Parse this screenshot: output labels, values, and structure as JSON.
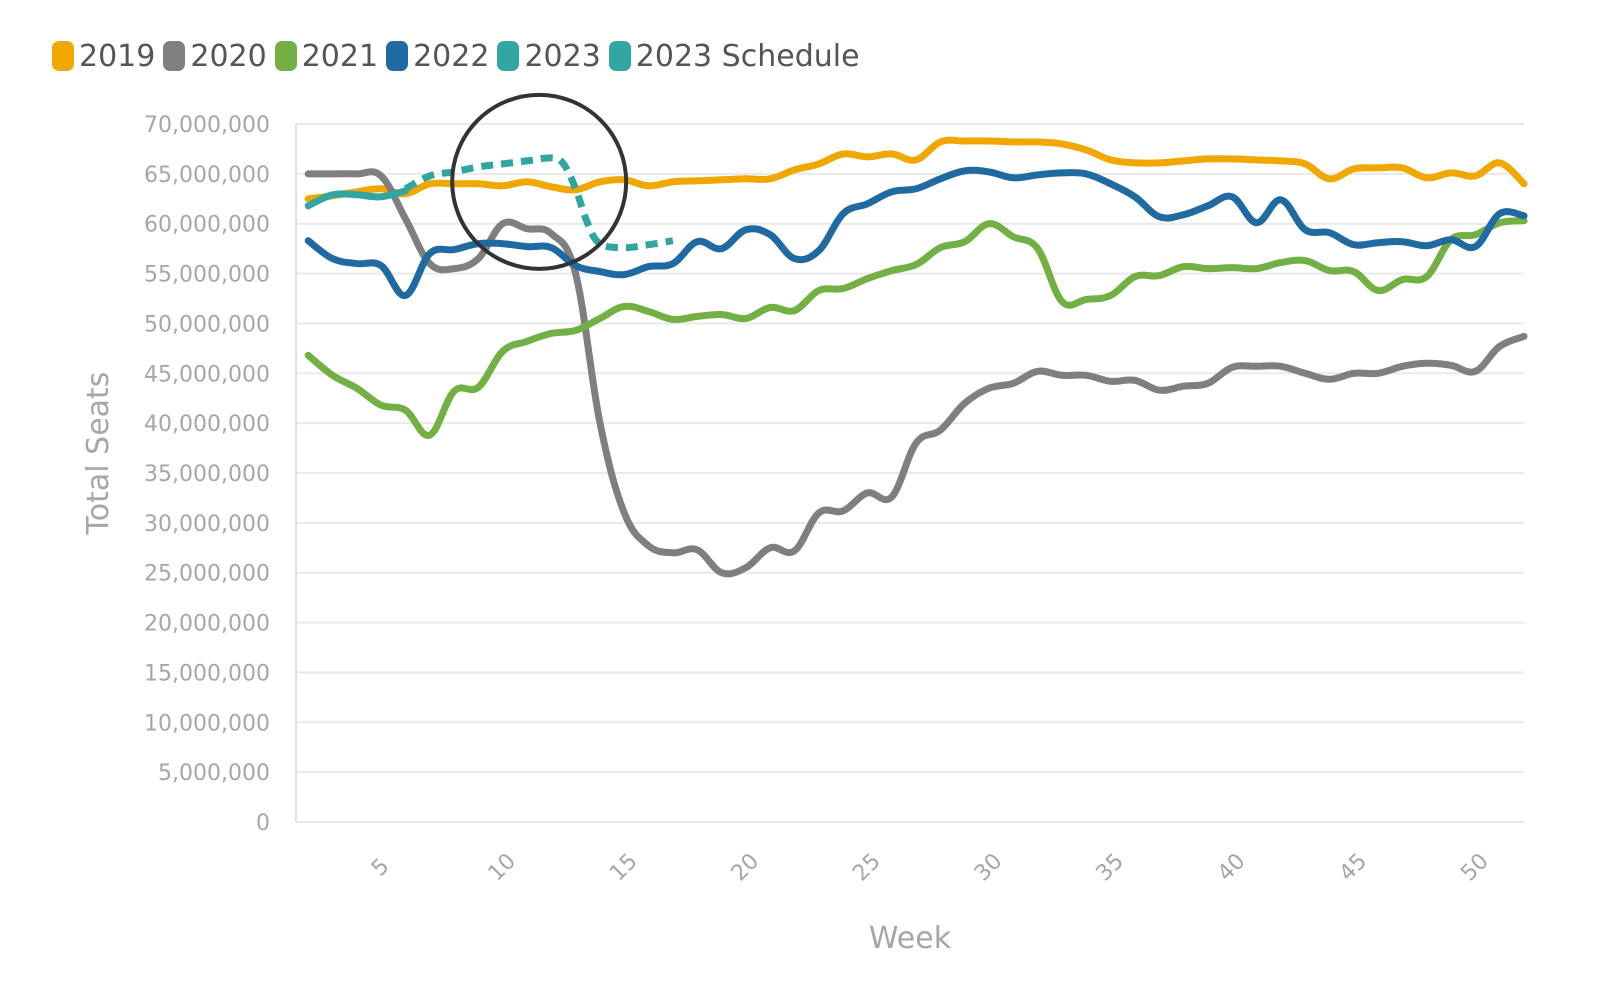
{
  "chart_data": {
    "type": "line",
    "title": "",
    "xlabel": "Week",
    "ylabel": "Total Seats",
    "xlim": [
      1.5,
      52
    ],
    "ylim": [
      0,
      70000000
    ],
    "grid": true,
    "legend_position": "top-left",
    "x_ticks": [
      5,
      10,
      15,
      20,
      25,
      30,
      35,
      40,
      45,
      50
    ],
    "x_tick_labels": [
      "5",
      "10",
      "15",
      "20",
      "25",
      "30",
      "35",
      "40",
      "45",
      "50"
    ],
    "y_ticks": [
      0,
      5000000,
      10000000,
      15000000,
      20000000,
      25000000,
      30000000,
      35000000,
      40000000,
      45000000,
      50000000,
      55000000,
      60000000,
      65000000,
      70000000
    ],
    "y_tick_labels": [
      "0",
      "5,000,000",
      "10,000,000",
      "15,000,000",
      "20,000,000",
      "25,000,000",
      "30,000,000",
      "35,000,000",
      "40,000,000",
      "45,000,000",
      "50,000,000",
      "55,000,000",
      "60,000,000",
      "65,000,000",
      "70,000,000"
    ],
    "series": [
      {
        "name": "2019",
        "color": "#f0a800",
        "dashed": false,
        "x": [
          2,
          3,
          4,
          5,
          6,
          7,
          8,
          9,
          10,
          11,
          12,
          13,
          14,
          15,
          16,
          17,
          18,
          19,
          20,
          21,
          22,
          23,
          24,
          25,
          26,
          27,
          28,
          29,
          30,
          31,
          32,
          33,
          34,
          35,
          36,
          37,
          38,
          39,
          40,
          41,
          42,
          43,
          44,
          45,
          46,
          47,
          48,
          49,
          50,
          51,
          52
        ],
        "y": [
          62500000,
          62800000,
          63200000,
          63500000,
          63000000,
          64000000,
          64000000,
          64000000,
          63800000,
          64200000,
          63700000,
          63400000,
          64200000,
          64400000,
          63800000,
          64200000,
          64300000,
          64400000,
          64500000,
          64500000,
          65400000,
          66000000,
          67000000,
          66700000,
          67000000,
          66400000,
          68200000,
          68300000,
          68300000,
          68200000,
          68200000,
          68000000,
          67400000,
          66400000,
          66100000,
          66100000,
          66300000,
          66500000,
          66500000,
          66400000,
          66300000,
          66000000,
          64500000,
          65500000,
          65600000,
          65600000,
          64600000,
          65100000,
          64800000,
          66100000,
          64000000
        ]
      },
      {
        "name": "2020",
        "color": "#7f7f7f",
        "dashed": false,
        "x": [
          2,
          3,
          4,
          5,
          6,
          7,
          8,
          9,
          10,
          11,
          12,
          13,
          14,
          15,
          16,
          17,
          18,
          19,
          20,
          21,
          22,
          23,
          24,
          25,
          26,
          27,
          28,
          29,
          30,
          31,
          32,
          33,
          34,
          35,
          36,
          37,
          38,
          39,
          40,
          41,
          42,
          43,
          44,
          45,
          46,
          47,
          48,
          49,
          50,
          51,
          52
        ],
        "y": [
          65000000,
          65000000,
          65000000,
          64800000,
          60500000,
          56000000,
          55500000,
          56500000,
          60000000,
          59500000,
          59000000,
          55000000,
          40000000,
          31000000,
          27700000,
          27000000,
          27300000,
          25000000,
          25500000,
          27500000,
          27200000,
          31000000,
          31200000,
          33000000,
          32600000,
          38000000,
          39300000,
          42000000,
          43500000,
          44000000,
          45200000,
          44800000,
          44800000,
          44200000,
          44300000,
          43300000,
          43700000,
          44000000,
          45600000,
          45700000,
          45700000,
          45000000,
          44400000,
          45000000,
          45000000,
          45700000,
          46000000,
          45800000,
          45200000,
          47700000,
          48700000
        ]
      },
      {
        "name": "2021",
        "color": "#72b043",
        "dashed": false,
        "x": [
          2,
          3,
          4,
          5,
          6,
          7,
          8,
          9,
          10,
          11,
          12,
          13,
          14,
          15,
          16,
          17,
          18,
          19,
          20,
          21,
          22,
          23,
          24,
          25,
          26,
          27,
          28,
          29,
          30,
          31,
          32,
          33,
          34,
          35,
          36,
          37,
          38,
          39,
          40,
          41,
          42,
          43,
          44,
          45,
          46,
          47,
          48,
          49,
          50,
          51,
          52
        ],
        "y": [
          46800000,
          44800000,
          43500000,
          41800000,
          41300000,
          38800000,
          43200000,
          43600000,
          47200000,
          48200000,
          49000000,
          49300000,
          50500000,
          51700000,
          51200000,
          50400000,
          50700000,
          50900000,
          50500000,
          51600000,
          51300000,
          53300000,
          53500000,
          54500000,
          55300000,
          55900000,
          57600000,
          58200000,
          60000000,
          58700000,
          57500000,
          52200000,
          52400000,
          52800000,
          54700000,
          54800000,
          55700000,
          55500000,
          55600000,
          55500000,
          56100000,
          56300000,
          55300000,
          55200000,
          53300000,
          54400000,
          54700000,
          58400000,
          58900000,
          60100000,
          60300000
        ]
      },
      {
        "name": "2022",
        "color": "#1f6aa0",
        "dashed": false,
        "x": [
          2,
          3,
          4,
          5,
          6,
          7,
          8,
          9,
          10,
          11,
          12,
          13,
          14,
          15,
          16,
          17,
          18,
          19,
          20,
          21,
          22,
          23,
          24,
          25,
          26,
          27,
          28,
          29,
          30,
          31,
          32,
          33,
          34,
          35,
          36,
          37,
          38,
          39,
          40,
          41,
          42,
          43,
          44,
          45,
          46,
          47,
          48,
          49,
          50,
          51,
          52
        ],
        "y": [
          58300000,
          56500000,
          56000000,
          55800000,
          52800000,
          57000000,
          57400000,
          58000000,
          58000000,
          57700000,
          57600000,
          55800000,
          55200000,
          54900000,
          55700000,
          56000000,
          58200000,
          57500000,
          59400000,
          58900000,
          56500000,
          57300000,
          61000000,
          62000000,
          63200000,
          63500000,
          64500000,
          65300000,
          65200000,
          64600000,
          64900000,
          65100000,
          65000000,
          64000000,
          62700000,
          60700000,
          60900000,
          61800000,
          62700000,
          60100000,
          62400000,
          59400000,
          59100000,
          57900000,
          58100000,
          58200000,
          57800000,
          58400000,
          57700000,
          61000000,
          60800000
        ]
      },
      {
        "name": "2023",
        "color": "#2fa6a1",
        "dashed": false,
        "x": [
          2,
          3,
          4,
          5,
          6
        ],
        "y": [
          61800000,
          62900000,
          62900000,
          62700000,
          63300000
        ]
      },
      {
        "name": "2023 Schedule",
        "color": "#2fa6a1",
        "dashed": true,
        "x": [
          6,
          7,
          8,
          9,
          10,
          11,
          12,
          12.5,
          13,
          13.5,
          14,
          15,
          16,
          17
        ],
        "y": [
          63500000,
          64800000,
          65200000,
          65700000,
          66000000,
          66300000,
          66600000,
          66000000,
          63500000,
          60000000,
          58000000,
          57600000,
          57900000,
          58300000
        ]
      }
    ],
    "annotations": [
      {
        "type": "circle",
        "center_x": 11.5,
        "center_y": 64200000
      }
    ]
  }
}
